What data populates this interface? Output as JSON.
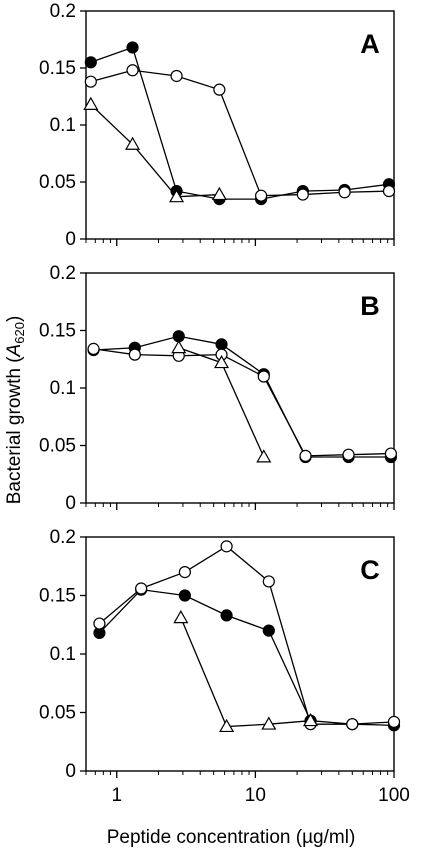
{
  "chart_data": {
    "type": "line",
    "xlabel": "Peptide concentration (µg/ml)",
    "ylabel": {
      "prefix": "Bacterial growth (",
      "symbol": "A",
      "subscript": "620",
      "suffix": ")"
    },
    "xscale": "log",
    "xlim": [
      0.6,
      100
    ],
    "x_ticks": [
      1,
      10,
      100
    ],
    "x_tick_labels": [
      "1",
      "10",
      "100"
    ],
    "ylim": [
      0,
      0.2
    ],
    "y_ticks": [
      0,
      0.05,
      0.1,
      0.15,
      0.2
    ],
    "y_tick_labels": [
      "0",
      "0.05",
      "0.1",
      "0.15",
      "0.2"
    ],
    "grid": false,
    "legend": "none",
    "marker_colors": {
      "filled": "#000000",
      "open": "#ffffff",
      "line": "#000000"
    },
    "panels": [
      {
        "label": "A",
        "series": [
          {
            "marker": "filled-circle",
            "x": [
              0.65,
              1.3,
              2.7,
              5.5,
              11,
              22,
              44,
              92
            ],
            "y": [
              0.155,
              0.168,
              0.042,
              0.035,
              0.035,
              0.042,
              0.043,
              0.048
            ]
          },
          {
            "marker": "open-circle",
            "x": [
              0.65,
              1.3,
              2.7,
              5.5,
              11,
              22,
              44,
              92
            ],
            "y": [
              0.138,
              0.148,
              0.143,
              0.131,
              0.038,
              0.039,
              0.041,
              0.042
            ]
          },
          {
            "marker": "open-triangle",
            "x": [
              0.65,
              1.3,
              2.7,
              5.5
            ],
            "y": [
              0.118,
              0.083,
              0.037,
              0.039
            ]
          }
        ]
      },
      {
        "label": "B",
        "series": [
          {
            "marker": "filled-circle",
            "x": [
              0.68,
              1.35,
              2.8,
              5.7,
              11.5,
              23,
              47,
              95
            ],
            "y": [
              0.133,
              0.135,
              0.145,
              0.138,
              0.112,
              0.04,
              0.04,
              0.04
            ]
          },
          {
            "marker": "open-circle",
            "x": [
              0.68,
              1.35,
              2.8,
              5.7,
              11.5,
              23,
              47,
              95
            ],
            "y": [
              0.134,
              0.129,
              0.128,
              0.129,
              0.11,
              0.041,
              0.042,
              0.043
            ]
          },
          {
            "marker": "open-triangle",
            "x": [
              2.8,
              5.7,
              11.5
            ],
            "y": [
              0.135,
              0.122,
              0.04
            ]
          }
        ]
      },
      {
        "label": "C",
        "series": [
          {
            "marker": "filled-circle",
            "x": [
              0.75,
              1.5,
              3.1,
              6.2,
              12.5,
              25,
              50,
              100
            ],
            "y": [
              0.118,
              0.155,
              0.15,
              0.133,
              0.12,
              0.043,
              0.04,
              0.039
            ]
          },
          {
            "marker": "open-circle",
            "x": [
              0.75,
              1.5,
              3.1,
              6.2,
              12.5,
              25,
              50,
              100
            ],
            "y": [
              0.126,
              0.156,
              0.17,
              0.192,
              0.162,
              0.04,
              0.04,
              0.042
            ]
          },
          {
            "marker": "open-triangle",
            "x": [
              2.9,
              6.2,
              12.5,
              25
            ],
            "y": [
              0.131,
              0.038,
              0.04,
              0.043
            ]
          }
        ]
      }
    ]
  }
}
